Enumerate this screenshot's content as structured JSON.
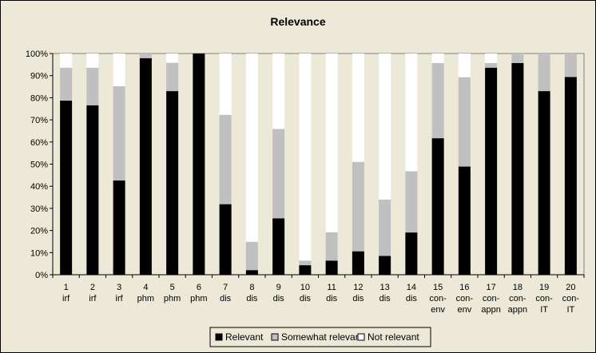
{
  "chart_data": {
    "type": "bar",
    "stacked": true,
    "percent_stacked": true,
    "title": "Relevance",
    "xlabel": "",
    "ylabel": "",
    "ylim": [
      0,
      100
    ],
    "yticks": [
      "0%",
      "10%",
      "20%",
      "30%",
      "40%",
      "50%",
      "60%",
      "70%",
      "80%",
      "90%",
      "100%"
    ],
    "categories": [
      {
        "num": "1",
        "sub": "irf"
      },
      {
        "num": "2",
        "sub": "irf"
      },
      {
        "num": "3",
        "sub": "irf"
      },
      {
        "num": "4",
        "sub": "phm"
      },
      {
        "num": "5",
        "sub": "phm"
      },
      {
        "num": "6",
        "sub": "phm"
      },
      {
        "num": "7",
        "sub": "dis"
      },
      {
        "num": "8",
        "sub": "dis"
      },
      {
        "num": "9",
        "sub": "dis"
      },
      {
        "num": "10",
        "sub": "dis"
      },
      {
        "num": "11",
        "sub": "dis"
      },
      {
        "num": "12",
        "sub": "dis"
      },
      {
        "num": "13",
        "sub": "dis"
      },
      {
        "num": "14",
        "sub": "dis"
      },
      {
        "num": "15",
        "sub": "con-env"
      },
      {
        "num": "16",
        "sub": "con-env"
      },
      {
        "num": "17",
        "sub": "con-appn"
      },
      {
        "num": "18",
        "sub": "con-appn"
      },
      {
        "num": "19",
        "sub": "con-IT"
      },
      {
        "num": "20",
        "sub": "con-IT"
      }
    ],
    "series": [
      {
        "name": "Relevant",
        "color": "#000000",
        "values": [
          78.7,
          76.6,
          42.6,
          97.9,
          83.0,
          100.0,
          31.9,
          2.1,
          25.5,
          4.3,
          6.4,
          10.6,
          8.5,
          19.1,
          61.7,
          48.9,
          93.6,
          95.7,
          83.0,
          89.4
        ]
      },
      {
        "name": "Somewhat relevant",
        "color": "#c0c0c0",
        "values": [
          14.9,
          17.0,
          42.6,
          2.1,
          12.8,
          0.0,
          40.4,
          12.8,
          40.4,
          2.1,
          12.8,
          40.4,
          25.5,
          27.7,
          34.0,
          40.4,
          2.1,
          4.3,
          17.0,
          10.6
        ]
      },
      {
        "name": "Not relevant",
        "color": "#ffffff",
        "values": [
          6.4,
          6.4,
          14.8,
          0.0,
          4.2,
          0.0,
          27.7,
          85.1,
          34.1,
          93.6,
          80.8,
          49.0,
          66.0,
          53.2,
          4.3,
          10.7,
          4.3,
          0.0,
          0.0,
          0.0
        ]
      }
    ],
    "grid": false,
    "legend_position": "bottom"
  },
  "colors": {
    "chart_background": "#ece9d8",
    "plot_background": "#ece9d8",
    "axis": "#000000",
    "bar_outline": "#808080"
  }
}
